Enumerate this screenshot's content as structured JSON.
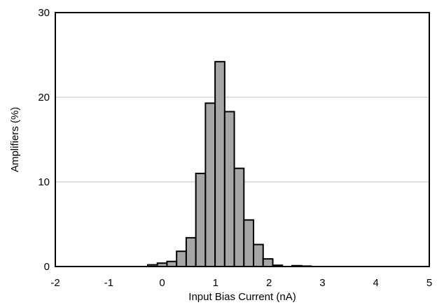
{
  "chart_data": {
    "type": "bar",
    "xlabel": "Input Bias Current (nA)",
    "ylabel": "Amplifiers (%)",
    "xlim": [
      -2,
      5
    ],
    "ylim": [
      0,
      30
    ],
    "x_ticks": [
      "-2",
      "-1",
      "0",
      "1",
      "2",
      "3",
      "4",
      "5"
    ],
    "y_ticks": [
      "0",
      "10",
      "20",
      "30"
    ],
    "grid": "horizontal",
    "bin_width": 0.18,
    "bins": [
      {
        "x": -0.27,
        "value": 0.2
      },
      {
        "x": -0.09,
        "value": 0.4
      },
      {
        "x": 0.09,
        "value": 0.6
      },
      {
        "x": 0.27,
        "value": 1.8
      },
      {
        "x": 0.45,
        "value": 3.4
      },
      {
        "x": 0.63,
        "value": 11.0
      },
      {
        "x": 0.81,
        "value": 19.3
      },
      {
        "x": 0.99,
        "value": 24.2
      },
      {
        "x": 1.17,
        "value": 18.3
      },
      {
        "x": 1.35,
        "value": 11.6
      },
      {
        "x": 1.53,
        "value": 5.5
      },
      {
        "x": 1.71,
        "value": 2.6
      },
      {
        "x": 1.89,
        "value": 0.9
      },
      {
        "x": 2.07,
        "value": 0.15
      },
      {
        "x": 2.43,
        "value": 0.1
      },
      {
        "x": 2.61,
        "value": 0.05
      }
    ],
    "colors": {
      "bar_fill": "#a6a6a6",
      "bar_stroke": "#000000",
      "grid": "#bfbfbf"
    }
  }
}
